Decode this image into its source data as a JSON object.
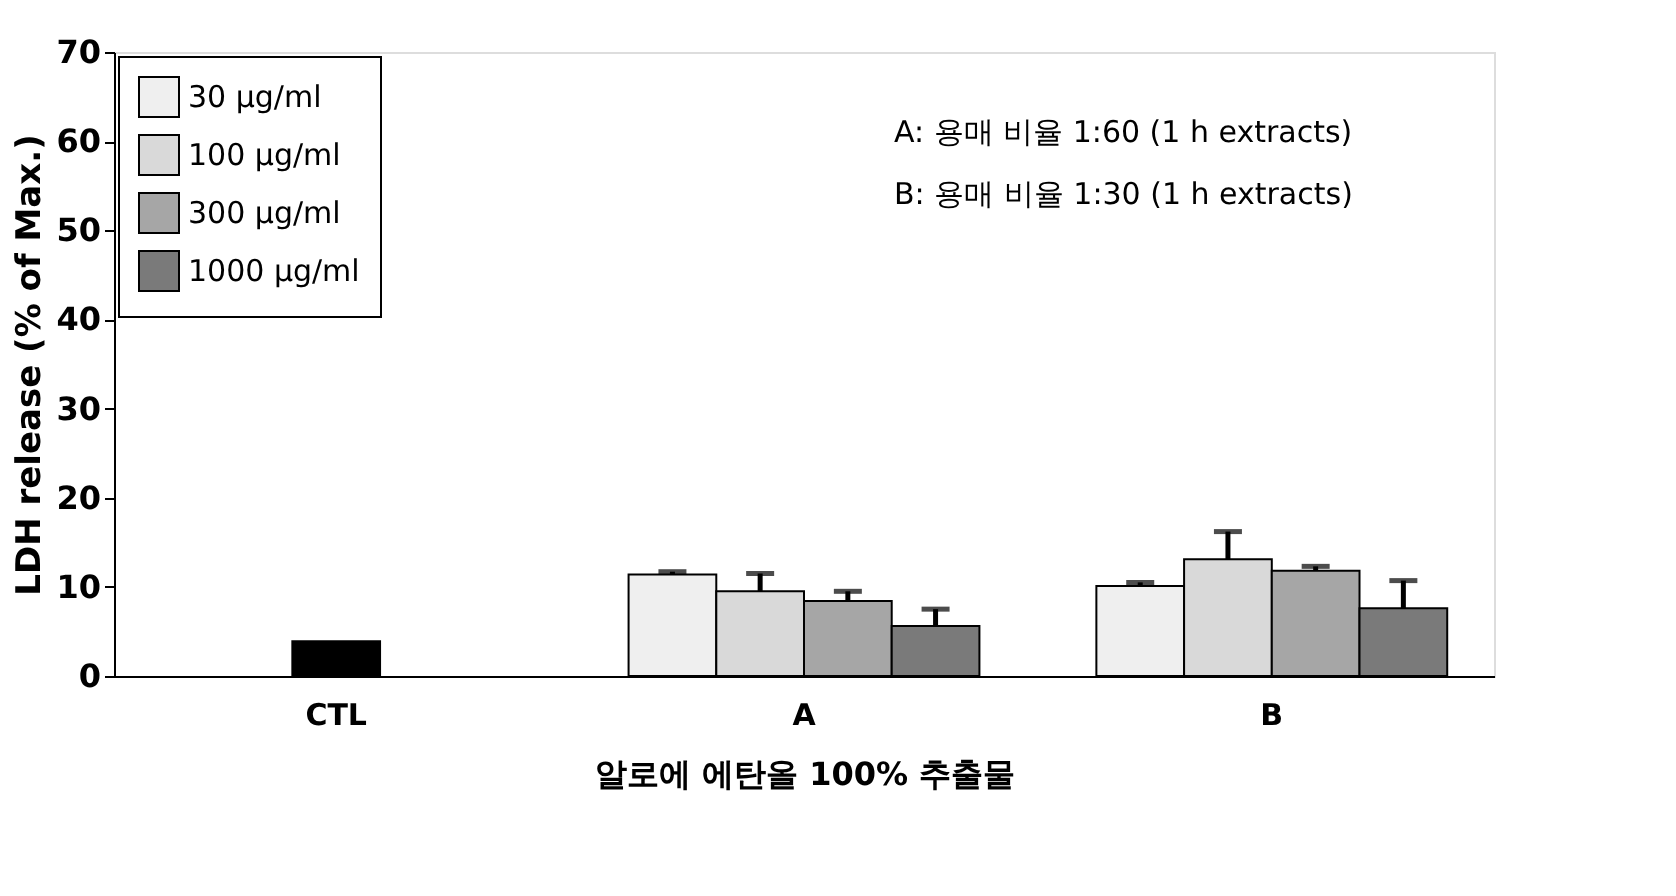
{
  "chart_data": {
    "type": "bar",
    "xlabel": "알로에 에탄올 100% 추출물",
    "ylabel": "LDH release (% of Max.)",
    "categories": [
      "CTL",
      "A",
      "B"
    ],
    "series": [
      {
        "color": "#000000",
        "values": [
          3.9,
          null,
          null
        ],
        "errors": [
          null,
          null,
          null
        ]
      },
      {
        "name": "30 μg/ml",
        "color": "#efefef",
        "values": [
          null,
          11.4,
          10.1
        ],
        "errors": [
          null,
          [
            11.4,
            11.7
          ],
          [
            10.1,
            10.5
          ]
        ]
      },
      {
        "name": "100 μg/ml",
        "color": "#d9d9d9",
        "values": [
          null,
          9.5,
          13.1
        ],
        "errors": [
          null,
          [
            9.5,
            11.5
          ],
          [
            13.1,
            16.2
          ]
        ]
      },
      {
        "name": "300 μg/ml",
        "color": "#a6a6a6",
        "values": [
          null,
          8.4,
          11.8
        ],
        "errors": [
          null,
          [
            8.4,
            9.5
          ],
          [
            11.8,
            12.3
          ]
        ]
      },
      {
        "name": "1000 μg/ml",
        "color": "#7a7a7a",
        "values": [
          null,
          5.6,
          7.6
        ],
        "errors": [
          null,
          [
            5.6,
            7.5
          ],
          [
            7.6,
            10.7
          ]
        ]
      }
    ],
    "ylim": [
      0,
      70
    ],
    "yticks": [
      0,
      10,
      20,
      30,
      40,
      50,
      60,
      70
    ],
    "grid": false,
    "legend": "top left",
    "annotations": [
      "A: 용매 비율 1:60 (1 h extracts)",
      "B: 용매 비율 1:30 (1 h extracts)"
    ]
  }
}
